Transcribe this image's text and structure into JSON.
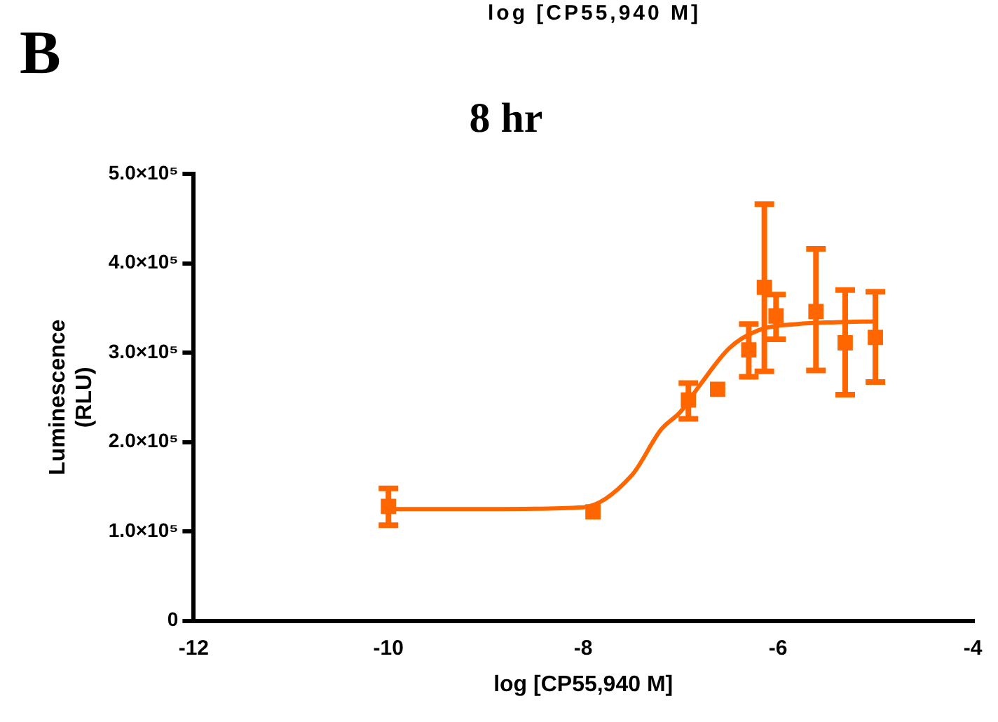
{
  "chart_data": {
    "type": "scatter",
    "title": "8 hr",
    "xlabel": "log [CP55,940 M]",
    "ylabel": "Luminescence (RLU)",
    "annotations": [
      "B",
      "log [CP55,940 M]"
    ],
    "xlim": [
      -12,
      -4
    ],
    "xticks": [
      -12,
      -10,
      -8,
      -6,
      -4
    ],
    "ylim": [
      0,
      500000
    ],
    "yticks": [
      0,
      {
        "value": 100000,
        "label": "1.0×10⁵"
      },
      {
        "value": 200000,
        "label": "2.0×10⁵"
      },
      {
        "value": 300000,
        "label": "3.0×10⁵"
      },
      {
        "value": 400000,
        "label": "4.0×10⁵"
      },
      {
        "value": 500000,
        "label": "5.0×10⁵"
      }
    ],
    "grid": false,
    "legend": false,
    "series": [
      {
        "type": "scatter",
        "marker": "square",
        "color": "#ff6600",
        "x": [
          -10.0,
          -7.9,
          -6.92,
          -6.62,
          -6.3,
          -6.14,
          -6.02,
          -5.61,
          -5.31,
          -5.0
        ],
        "values": [
          128000,
          122000,
          247000,
          259000,
          303000,
          373000,
          341000,
          346000,
          311000,
          317000
        ],
        "errors": [
          [
            107000,
            148000
          ],
          null,
          [
            226000,
            266000
          ],
          null,
          [
            273000,
            332000
          ],
          [
            279000,
            466000
          ],
          [
            315000,
            365000
          ],
          [
            280000,
            416000
          ],
          [
            253000,
            370000
          ],
          [
            267000,
            368000
          ]
        ]
      },
      {
        "type": "line",
        "marker": "none",
        "line_style": "solid",
        "color": "#ff6600",
        "x": [
          -10,
          -9,
          -8,
          -7.5,
          -7.2,
          -7,
          -6.8,
          -6.5,
          -6.2,
          -5.8,
          -5.4,
          -5
        ],
        "values": [
          125000,
          125000,
          127000,
          163000,
          214000,
          234000,
          264000,
          305000,
          325000,
          332000,
          334000,
          335000
        ]
      }
    ]
  }
}
